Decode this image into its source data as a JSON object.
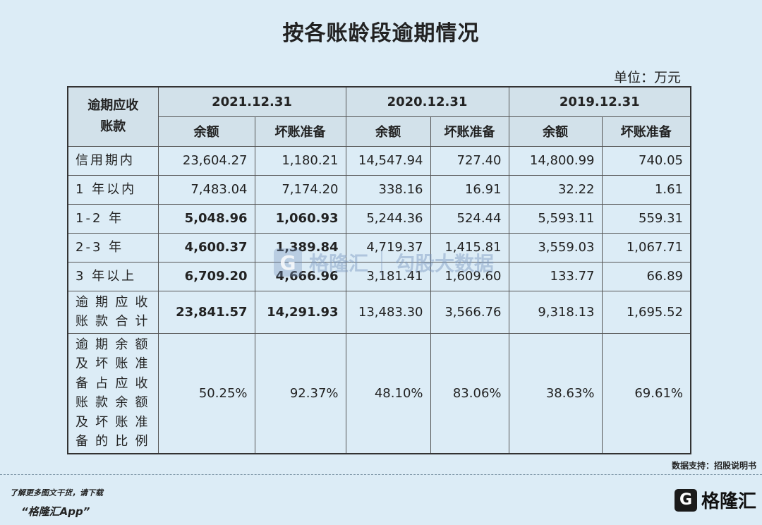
{
  "title": "按各账龄段逾期情况",
  "unit": "单位：万元",
  "corner_header": [
    "逾期应收",
    "账款"
  ],
  "years": [
    "2021.12.31",
    "2020.12.31",
    "2019.12.31"
  ],
  "subheaders": [
    "余额",
    "坏账准备",
    "余额",
    "坏账准备",
    "余额",
    "坏账准备"
  ],
  "rows": [
    {
      "label": "信用期内",
      "values": [
        "23,604.27",
        "1,180.21",
        "14,547.94",
        "727.40",
        "14,800.99",
        "740.05"
      ]
    },
    {
      "label": "1 年以内",
      "values": [
        "7,483.04",
        "7,174.20",
        "338.16",
        "16.91",
        "32.22",
        "1.61"
      ]
    },
    {
      "label": "1-2 年",
      "values": [
        "5,048.96",
        "1,060.93",
        "5,244.36",
        "524.44",
        "5,593.11",
        "559.31"
      ]
    },
    {
      "label": "2-3 年",
      "values": [
        "4,600.37",
        "1,389.84",
        "4,719.37",
        "1,415.81",
        "3,559.03",
        "1,067.71"
      ]
    },
    {
      "label": "3 年以上",
      "values": [
        "6,709.20",
        "4,666.96",
        "3,181.41",
        "1,609.60",
        "133.77",
        "66.89"
      ]
    },
    {
      "label_lines": [
        "逾期应收",
        "账款合计"
      ],
      "values": [
        "23,841.57",
        "14,291.93",
        "13,483.30",
        "3,566.76",
        "9,318.13",
        "1,695.52"
      ]
    },
    {
      "label_lines": [
        "逾期余额",
        "及坏账准",
        "备占应收",
        "账款余额",
        "及坏账准",
        "备的比例"
      ],
      "values": [
        "50.25%",
        "92.37%",
        "48.10%",
        "83.06%",
        "38.63%",
        "69.61%"
      ]
    }
  ],
  "watermark": {
    "brand": "格隆汇",
    "product": "勾股大数据"
  },
  "source": "数据支持：招股说明书",
  "promo": {
    "line1": "了解更多图文干货，请下载",
    "line2": "“格隆汇App”"
  },
  "brand": {
    "logo_glyph": "G",
    "name": "格隆汇"
  }
}
